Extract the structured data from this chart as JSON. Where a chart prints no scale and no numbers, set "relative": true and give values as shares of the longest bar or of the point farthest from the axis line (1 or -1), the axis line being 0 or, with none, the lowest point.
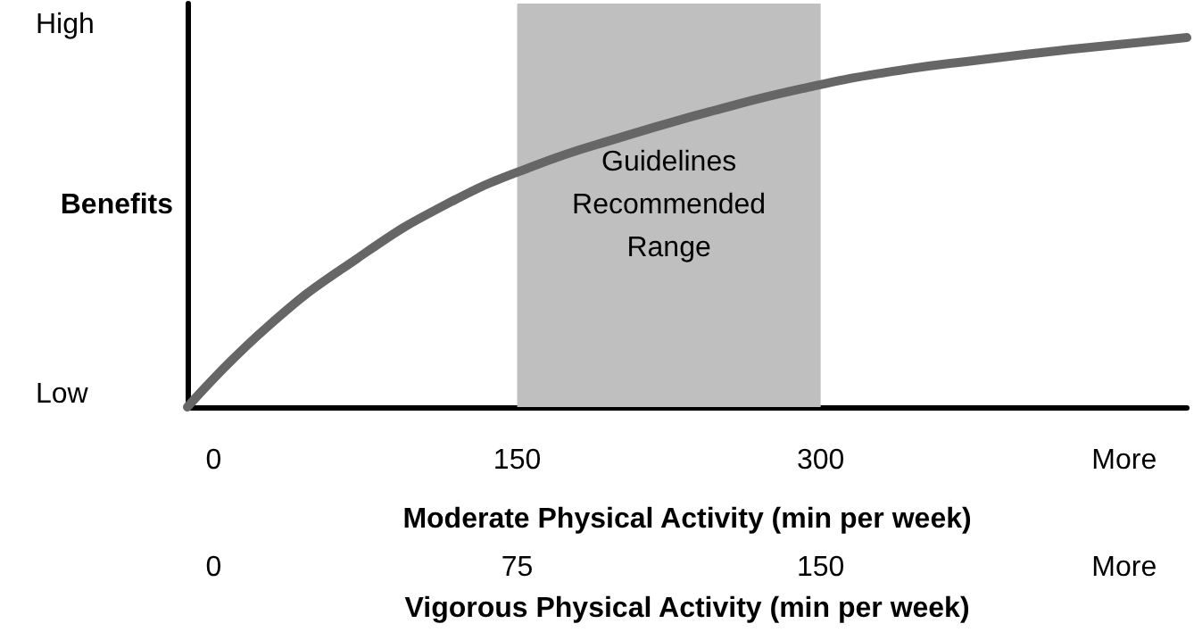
{
  "chart_data": {
    "type": "line",
    "ylabel": "Benefits",
    "xlabel": "Moderate Physical Activity (min per week)",
    "x2label": "Vigorous Physical Activity (min per week)",
    "x": [
      -13,
      26.5,
      70.6,
      114.7,
      158.8,
      203,
      247,
      291,
      335,
      379,
      423.5,
      481
    ],
    "series": [
      {
        "color": "#666666",
        "values": [
          0,
          0.217,
          0.401,
          0.548,
          0.654,
          0.733,
          0.802,
          0.862,
          0.908,
          0.94,
          0.968,
          1
        ]
      }
    ],
    "relative": true,
    "annotations": [
      "High",
      "Low"
    ],
    "xlim": [
      -13,
      481
    ],
    "xticks": [
      0,
      150,
      300,
      {
        "value": 450,
        "label": "More"
      }
    ],
    "x2lim": [
      -6.5,
      240.5
    ],
    "x2ticks": [
      0,
      75,
      150,
      {
        "value": 225,
        "label": "More"
      }
    ],
    "bands": [
      {
        "axis": "x",
        "from": 150,
        "to": 300,
        "label": "Guidelines\nRecommended\nRange",
        "color": "#bfbfbf"
      }
    ],
    "grid": false,
    "marker": "none",
    "line_style": "solid"
  }
}
